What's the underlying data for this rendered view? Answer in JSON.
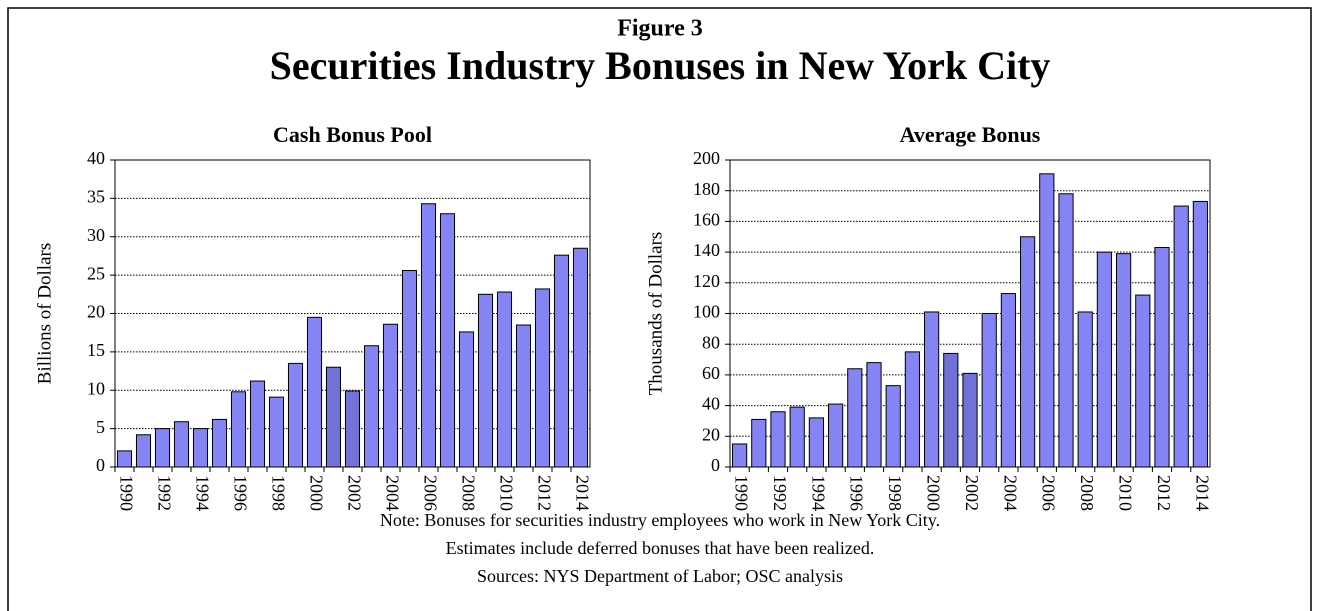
{
  "header": {
    "figure": "Figure 3",
    "title": "Securities Industry Bonuses in New York City"
  },
  "notes": [
    "Note: Bonuses for securities industry employees who work in New York City.",
    "Estimates include deferred bonuses that have been realized.",
    "Sources: NYS Department of Labor; OSC analysis"
  ],
  "chart_data": [
    {
      "type": "bar",
      "title": "Cash Bonus Pool",
      "ylabel": "Billions of Dollars",
      "categories": [
        "1990",
        null,
        "1992",
        null,
        "1994",
        null,
        "1996",
        null,
        "1998",
        null,
        "2000",
        null,
        "2002",
        null,
        "2004",
        null,
        "2006",
        null,
        "2008",
        null,
        "2010",
        null,
        "2012",
        null,
        "2014"
      ],
      "values": [
        2.1,
        4.2,
        5.0,
        5.9,
        5.0,
        6.2,
        9.8,
        11.2,
        9.1,
        13.5,
        19.5,
        13.0,
        9.9,
        15.8,
        18.6,
        25.6,
        34.3,
        33.0,
        17.6,
        22.5,
        22.8,
        18.5,
        23.2,
        27.6,
        28.5
      ],
      "colors": [
        "#8484f4",
        "#8484f4",
        "#8484f4",
        "#8484f4",
        "#8484f4",
        "#8484f4",
        "#8484f4",
        "#8484f4",
        "#8484f4",
        "#8484f4",
        "#8484f4",
        "#7171d8",
        "#7171d8",
        "#8484f4",
        "#8484f4",
        "#8484f4",
        "#8484f4",
        "#8484f4",
        "#8484f4",
        "#8484f4",
        "#8484f4",
        "#8484f4",
        "#8484f4",
        "#8484f4",
        "#8484f4"
      ],
      "ylim": [
        0,
        40
      ],
      "yticks": [
        0,
        5,
        10,
        15,
        20,
        25,
        30,
        35,
        40
      ],
      "grid": true
    },
    {
      "type": "bar",
      "title": "Average Bonus",
      "ylabel": "Thousands of Dollars",
      "categories": [
        "1990",
        null,
        "1992",
        null,
        "1994",
        null,
        "1996",
        null,
        "1998",
        null,
        "2000",
        null,
        "2002",
        null,
        "2004",
        null,
        "2006",
        null,
        "2008",
        null,
        "2010",
        null,
        "2012",
        null,
        "2014"
      ],
      "values": [
        15,
        31,
        36,
        39,
        32,
        41,
        64,
        68,
        53,
        75,
        101,
        74,
        61,
        100,
        113,
        150,
        191,
        178,
        101,
        140,
        139,
        112,
        143,
        170,
        173
      ],
      "colors": [
        "#8484f4",
        "#8484f4",
        "#8484f4",
        "#8484f4",
        "#8484f4",
        "#8484f4",
        "#8484f4",
        "#8484f4",
        "#8484f4",
        "#8484f4",
        "#8484f4",
        "#7171d8",
        "#7171d8",
        "#8484f4",
        "#8484f4",
        "#8484f4",
        "#8484f4",
        "#8484f4",
        "#8484f4",
        "#8484f4",
        "#8484f4",
        "#8484f4",
        "#8484f4",
        "#8484f4",
        "#8484f4"
      ],
      "ylim": [
        0,
        200
      ],
      "yticks": [
        0,
        20,
        40,
        60,
        80,
        100,
        120,
        140,
        160,
        180,
        200
      ],
      "grid": true
    }
  ]
}
